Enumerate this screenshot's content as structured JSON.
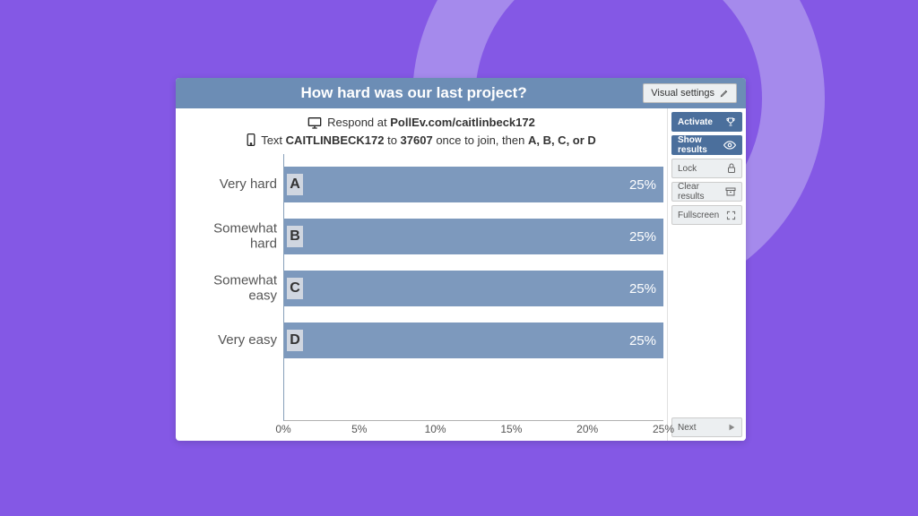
{
  "background": {
    "page": "#8458e5",
    "ring": "#a58aec"
  },
  "poll": {
    "title": "How hard was our last project?",
    "visual_settings_label": "Visual settings",
    "respond_prefix": "Respond at ",
    "respond_url": "PollEv.com/caitlinbeck172",
    "text_prefix": "Text ",
    "text_code": "CAITLINBECK172",
    "text_mid": " to ",
    "text_number": "37607",
    "text_after": " once to join, then ",
    "text_options": "A, B, C, or D"
  },
  "chart": {
    "type": "bar",
    "orientation": "horizontal",
    "bar_color": "#7d99bd",
    "letter_bg": "#d0d6e0",
    "axis_color": "#879fba",
    "label_color": "#555555",
    "pct_color": "#ffffff",
    "xlim": [
      0,
      25
    ],
    "xticks": [
      "0%",
      "5%",
      "10%",
      "15%",
      "20%",
      "25%"
    ],
    "rows": [
      {
        "letter": "A",
        "label": "Very hard",
        "value": 25,
        "pct": "25%"
      },
      {
        "letter": "B",
        "label": "Somewhat hard",
        "value": 25,
        "pct": "25%"
      },
      {
        "letter": "C",
        "label": "Somewhat easy",
        "value": 25,
        "pct": "25%"
      },
      {
        "letter": "D",
        "label": "Very easy",
        "value": 25,
        "pct": "25%"
      }
    ]
  },
  "controls": {
    "activate": "Activate",
    "show_results": "Show results",
    "lock": "Lock",
    "clear_results": "Clear results",
    "fullscreen": "Fullscreen",
    "next": "Next"
  }
}
